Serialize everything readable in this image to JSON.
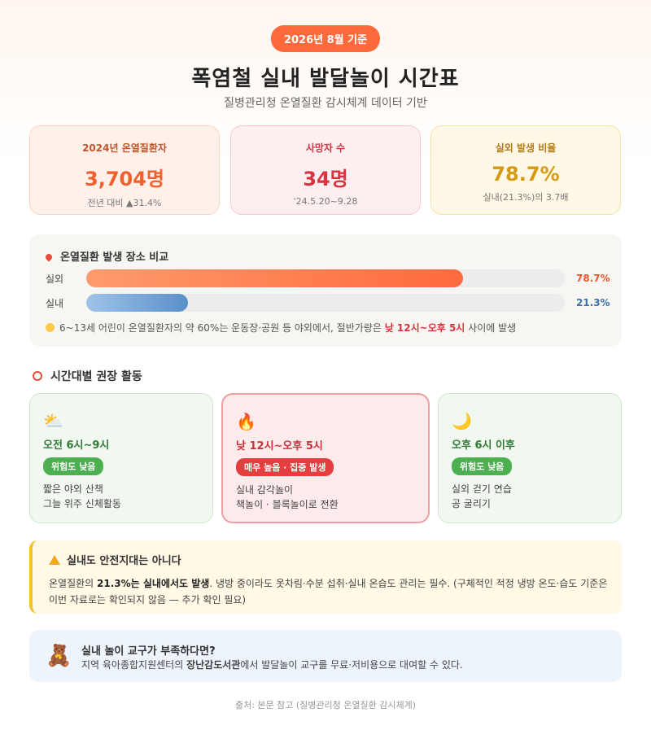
{
  "header": {
    "badge": "2026년 8월 기준",
    "title": "폭염철 실내 발달놀이 시간표",
    "subtitle": "질병관리청 온열질환 감시체계 데이터 기반"
  },
  "stats": [
    {
      "label": "2024년 온열질환자",
      "value": "3,704명",
      "sub": "전년 대비 ▲31.4%"
    },
    {
      "label": "사망자 수",
      "value": "34명",
      "sub": "'24.5.20~9.28"
    },
    {
      "label": "실외 발생 비율",
      "value": "78.7%",
      "sub": "실내(21.3%)의 3.7배"
    }
  ],
  "location": {
    "title": "온열질환 발생 장소 비교",
    "bars": [
      {
        "label": "실외",
        "percent": 78.7,
        "percent_text": "78.7%"
      },
      {
        "label": "실내",
        "percent": 21.3,
        "percent_text": "21.3%"
      }
    ],
    "note_pre": "6~13세 어린이 온열질환자의 약 60%는 운동장·공원 등 야외에서, 절반가량은 ",
    "note_hl": "낮 12시~오후 5시",
    "note_post": " 사이에 발생"
  },
  "schedule": {
    "title": "시간대별 권장 활동",
    "items": [
      {
        "icon": "⛅",
        "time": "오전 6시~9시",
        "risk": "위험도 낮음",
        "activity1": "짧은 야외 산책",
        "activity2": "그늘 위주 신체활동"
      },
      {
        "icon": "🔥",
        "time": "낮 12시~오후 5시",
        "risk": "매우 높음 · 집중 발생",
        "activity1": "실내 감각놀이",
        "activity2": "책놀이 · 블록놀이로 전환"
      },
      {
        "icon": "🌙",
        "time": "오후 6시 이후",
        "risk": "위험도 낮음",
        "activity1": "실외 걷기 연습",
        "activity2": "공 굴리기"
      }
    ]
  },
  "warning": {
    "title": "실내도 안전지대는 아니다",
    "body_pre": "온열질환의 ",
    "body_b1": "21.3%는 실내에서도 발생",
    "body_post": ". 냉방 중이라도 옷차림·수분 섭취·실내 온습도 관리는 필수. (구체적인 적정 냉방 온도·습도 기준은 이번 자료로는 확인되지 않음 — 추가 확인 필요)"
  },
  "toy": {
    "icon": "🧸",
    "title": "실내 놀이 교구가 부족하다면?",
    "body_pre": "지역 육아종합지원센터의 ",
    "body_b": "장난감도서관",
    "body_post": "에서 발달놀이 교구를 무료·저비용으로 대여할 수 있다."
  },
  "footer": "출처: 본문 참고 (질병관리청 온열질환 감시체계)"
}
